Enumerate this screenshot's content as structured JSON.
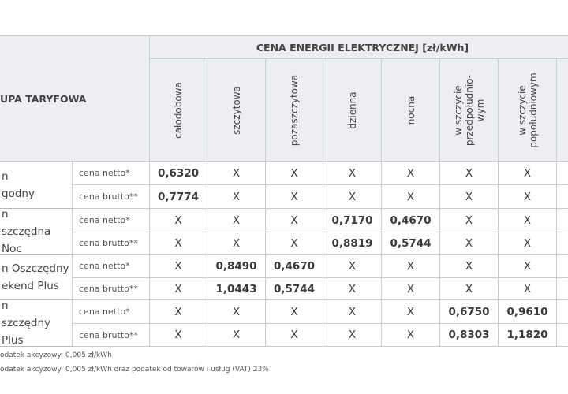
{
  "table": {
    "group_header": "UPA TARYFOWA",
    "price_header": "CENA ENERGII ELEKTRYCZNEJ [zł/kWh]",
    "columns": [
      [
        "całodobowa"
      ],
      [
        "szczytowa"
      ],
      [
        "pozaszczytowa"
      ],
      [
        "dzienna"
      ],
      [
        "nocna"
      ],
      [
        "w szczycie",
        "przedpołudnio-",
        "wym"
      ],
      [
        "w szczycie",
        "popołudniowym"
      ]
    ],
    "groups": [
      {
        "label": [
          "n",
          "godny"
        ],
        "rows": [
          {
            "type": "cena netto*",
            "cells": [
              "0,6320",
              "X",
              "X",
              "X",
              "X",
              "X",
              "X"
            ]
          },
          {
            "type": "cena brutto**",
            "cells": [
              "0,7774",
              "X",
              "X",
              "X",
              "X",
              "X",
              "X"
            ]
          }
        ]
      },
      {
        "label": [
          "n",
          "szczędna Noc"
        ],
        "rows": [
          {
            "type": "cena netto*",
            "cells": [
              "X",
              "X",
              "X",
              "0,7170",
              "0,4670",
              "X",
              "X"
            ]
          },
          {
            "type": "cena brutto**",
            "cells": [
              "X",
              "X",
              "X",
              "0,8819",
              "0,5744",
              "X",
              "X"
            ]
          }
        ]
      },
      {
        "label": [
          "n Oszczędny",
          "ekend Plus"
        ],
        "rows": [
          {
            "type": "cena netto*",
            "cells": [
              "X",
              "0,8490",
              "0,4670",
              "X",
              "X",
              "X",
              "X"
            ]
          },
          {
            "type": "cena brutto**",
            "cells": [
              "X",
              "1,0443",
              "0,5744",
              "X",
              "X",
              "X",
              "X"
            ]
          }
        ]
      },
      {
        "label": [
          "n",
          "szczędny Plus"
        ],
        "rows": [
          {
            "type": "cena netto*",
            "cells": [
              "X",
              "X",
              "X",
              "X",
              "X",
              "0,6750",
              "0,9610"
            ]
          },
          {
            "type": "cena brutto**",
            "cells": [
              "X",
              "X",
              "X",
              "X",
              "X",
              "0,8303",
              "1,1820"
            ]
          }
        ]
      }
    ]
  },
  "footnotes": [
    "odatek akcyzowy: 0,005 zł/kWh",
    "odatek akcyzowy: 0,005 zł/kWh oraz podatek od towarów i usług (VAT) 23%"
  ]
}
